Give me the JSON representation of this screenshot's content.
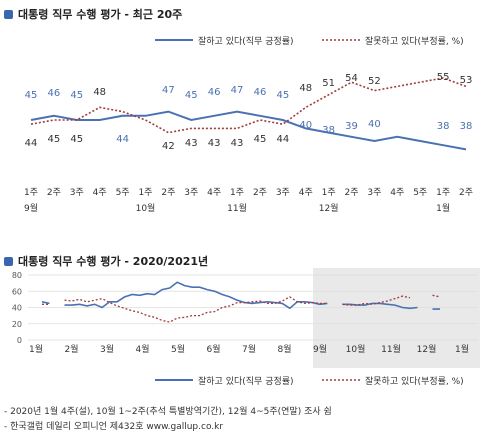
{
  "chart_data": [
    {
      "type": "line",
      "title": "대통령 직무 수행 평가 - 최근 20주",
      "categories": [
        "1주\n9월",
        "2주",
        "3주",
        "4주",
        "5주",
        "1주\n10월",
        "2주",
        "3주",
        "4주",
        "1주\n11월",
        "2주",
        "3주",
        "4주",
        "1주\n12월",
        "2주",
        "3주",
        "4주",
        "5주",
        "1주\n1월",
        "2주"
      ],
      "x_labels_top": [
        "1주",
        "2주",
        "3주",
        "4주",
        "5주",
        "1주",
        "2주",
        "3주",
        "4주",
        "1주",
        "2주",
        "3주",
        "4주",
        "1주",
        "2주",
        "3주",
        "4주",
        "5주",
        "1주",
        "2주"
      ],
      "x_labels_month": {
        "0": "9월",
        "5": "10월",
        "9": "11월",
        "13": "12월",
        "18": "1월"
      },
      "series": [
        {
          "name": "잘하고 있다(직무 긍정률)",
          "color": "#4a72b2",
          "style": "solid",
          "values": [
            45,
            46,
            45,
            44,
            null,
            null,
            47,
            45,
            46,
            47,
            46,
            45,
            null,
            null,
            null,
            null,
            null,
            null,
            null,
            null
          ],
          "label_values": [
            45,
            46,
            45,
            null,
            null,
            null,
            47,
            45,
            46,
            47,
            46,
            45,
            null,
            null,
            null,
            null,
            null,
            null,
            null,
            null
          ]
        },
        {
          "name": "잘못하고 있다(부정률, %)",
          "color": "#a23b3b",
          "style": "dotted",
          "values": [
            44,
            45,
            45,
            48,
            null,
            null,
            42,
            43,
            43,
            43,
            45,
            44,
            48,
            51,
            54,
            52,
            null,
            null,
            55,
            53
          ]
        }
      ],
      "positive_labels": [
        45,
        46,
        45,
        null,
        44,
        null,
        47,
        45,
        46,
        47,
        46,
        45,
        null,
        40,
        39,
        38,
        40,
        null,
        null,
        38
      ],
      "negative_labels": [
        44,
        45,
        45,
        48,
        null,
        null,
        42,
        43,
        43,
        43,
        45,
        44,
        48,
        51,
        54,
        52,
        null,
        null,
        55,
        53
      ],
      "positive_top_labels": [
        45,
        46,
        45,
        null,
        null,
        null,
        47,
        45,
        46,
        47,
        46,
        45,
        null,
        null,
        null,
        null,
        null,
        null,
        null,
        null
      ],
      "negative_bottom_labels": [
        44,
        45,
        45,
        null,
        44,
        null,
        42,
        43,
        43,
        43,
        45,
        44,
        40,
        38,
        null,
        40,
        null,
        null,
        38,
        38
      ],
      "legend": [
        "잘하고 있다(직무 긍정률)",
        "잘못하고 있다(부정률, %)"
      ],
      "legend_position": "top-right"
    },
    {
      "type": "line",
      "title": "대통령 직무 수행 평가 - 2020/2021년",
      "months": [
        "1월",
        "2월",
        "3월",
        "4월",
        "5월",
        "6월",
        "7월",
        "8월",
        "9월",
        "10월",
        "11월",
        "12월",
        "1월"
      ],
      "ylim": [
        0,
        80
      ],
      "yticks": [
        0,
        20,
        40,
        60,
        80
      ],
      "shaded_start_month": 8,
      "series": [
        {
          "name": "잘하고 있다(직무 긍정률)",
          "color": "#4a72b2",
          "style": "solid",
          "values": [
            47,
            45,
            null,
            43,
            43,
            44,
            42,
            44,
            40,
            47,
            47,
            53,
            56,
            55,
            57,
            56,
            62,
            64,
            71,
            67,
            65,
            65,
            62,
            60,
            56,
            53,
            49,
            46,
            45,
            46,
            47,
            46,
            45,
            39,
            47,
            47,
            46,
            44,
            45,
            null,
            44,
            44,
            43,
            43,
            45,
            45,
            44,
            43,
            40,
            39,
            40,
            null,
            38,
            38
          ]
        },
        {
          "name": "잘못하고 있다(부정률, %)",
          "color": "#a23b3b",
          "style": "dotted",
          "values": [
            44,
            44,
            null,
            49,
            48,
            50,
            47,
            49,
            51,
            46,
            42,
            39,
            36,
            34,
            30,
            28,
            24,
            22,
            27,
            28,
            30,
            30,
            34,
            35,
            40,
            42,
            46,
            46,
            47,
            48,
            45,
            45,
            48,
            53,
            47,
            45,
            46,
            45,
            45,
            null,
            44,
            43,
            43,
            45,
            44,
            46,
            48,
            51,
            54,
            52,
            null,
            null,
            55,
            53
          ]
        }
      ],
      "legend": [
        "잘하고 있다(직무 긍정률)",
        "잘못하고 있다(부정률, %)"
      ]
    }
  ],
  "footnotes": [
    "- 2020년 1월 4주(설), 10월 1~2주(추석 특별방역기간), 12월 4~5주(연말) 조사 쉼",
    "- 한국갤럽 데일리 오피니언 제432호 www.gallup.co.kr"
  ],
  "colors": {
    "positive": "#4a72b2",
    "negative": "#a23b3b",
    "bullet": "#3a66b0",
    "shade": "#e9e9e9"
  }
}
